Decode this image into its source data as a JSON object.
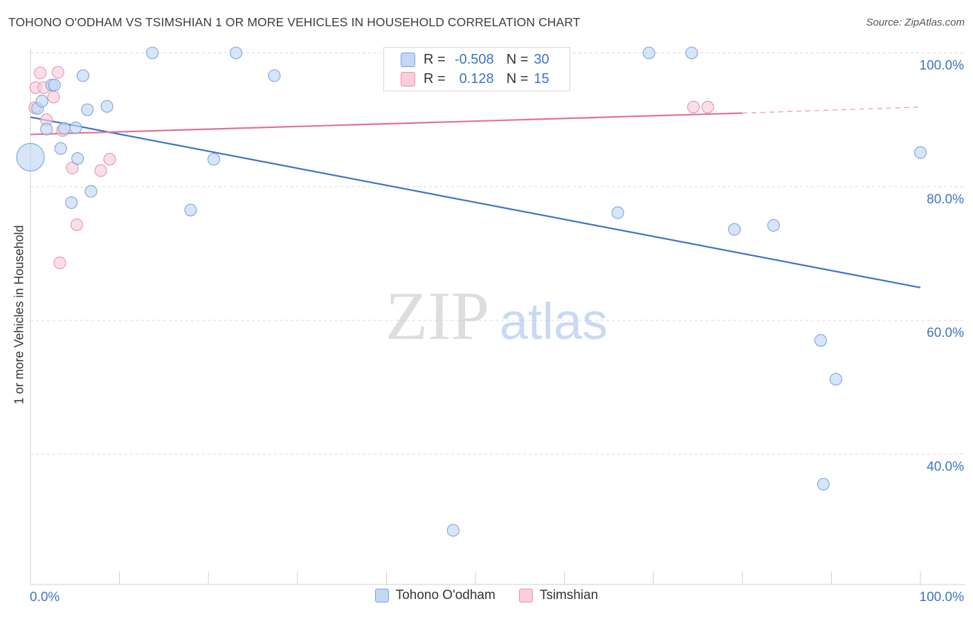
{
  "title": "TOHONO O'ODHAM VS TSIMSHIAN 1 OR MORE VEHICLES IN HOUSEHOLD CORRELATION CHART",
  "source": "Source: ZipAtlas.com",
  "watermark": {
    "zip": "ZIP",
    "atlas": "atlas"
  },
  "stats": {
    "blue": {
      "r_label": "R =",
      "r_value": "-0.508",
      "n_label": "N =",
      "n_value": "30"
    },
    "pink": {
      "r_label": "R =",
      "r_value": "0.128",
      "n_label": "N =",
      "n_value": "15"
    }
  },
  "colors": {
    "blue": "#3b73c9",
    "pink": "#e0709a",
    "blue_fill": "#c2d7f4",
    "pink_fill": "#f9cddb",
    "grid": "#d9d9d9"
  },
  "chart_data": {
    "type": "scatter",
    "title": "TOHONO O'ODHAM VS TSIMSHIAN 1 OR MORE VEHICLES IN HOUSEHOLD CORRELATION CHART",
    "xlabel": "",
    "ylabel": "1 or more Vehicles in Household",
    "xlim": [
      0,
      100
    ],
    "ylim": [
      20.5,
      101.5
    ],
    "x_tick_labels": [
      "0.0%",
      "100.0%"
    ],
    "y_ticks": [
      {
        "value": 100,
        "label": "100.0%"
      },
      {
        "value": 80,
        "label": "80.0%"
      },
      {
        "value": 60,
        "label": "60.0%"
      },
      {
        "value": 40,
        "label": "40.0%"
      }
    ],
    "series": [
      {
        "name": "Tohono O'odham",
        "color": "#3b73c9",
        "points": [
          {
            "x": 0.0,
            "y": 84.4,
            "big": true
          },
          {
            "x": 0.8,
            "y": 91.7
          },
          {
            "x": 1.3,
            "y": 92.8
          },
          {
            "x": 1.8,
            "y": 88.6
          },
          {
            "x": 2.4,
            "y": 95.2
          },
          {
            "x": 2.7,
            "y": 95.2
          },
          {
            "x": 3.4,
            "y": 85.7
          },
          {
            "x": 3.8,
            "y": 88.7
          },
          {
            "x": 4.6,
            "y": 77.6
          },
          {
            "x": 5.1,
            "y": 88.8
          },
          {
            "x": 5.3,
            "y": 84.2
          },
          {
            "x": 5.9,
            "y": 96.6
          },
          {
            "x": 6.4,
            "y": 91.5
          },
          {
            "x": 6.8,
            "y": 79.3
          },
          {
            "x": 8.6,
            "y": 92.0
          },
          {
            "x": 13.7,
            "y": 100.0
          },
          {
            "x": 18.0,
            "y": 76.5
          },
          {
            "x": 20.6,
            "y": 84.1
          },
          {
            "x": 23.1,
            "y": 100.0
          },
          {
            "x": 27.4,
            "y": 96.6
          },
          {
            "x": 47.5,
            "y": 28.6
          },
          {
            "x": 66.0,
            "y": 76.1
          },
          {
            "x": 69.5,
            "y": 100.0
          },
          {
            "x": 74.3,
            "y": 100.0
          },
          {
            "x": 79.1,
            "y": 73.6
          },
          {
            "x": 83.5,
            "y": 74.2
          },
          {
            "x": 88.8,
            "y": 57.0
          },
          {
            "x": 89.1,
            "y": 35.5
          },
          {
            "x": 90.5,
            "y": 51.2
          },
          {
            "x": 100.0,
            "y": 85.1
          }
        ],
        "trend": {
          "x": [
            0,
            100
          ],
          "y": [
            90.4,
            64.9
          ]
        }
      },
      {
        "name": "Tsimshian",
        "color": "#e0709a",
        "points": [
          {
            "x": 0.5,
            "y": 91.8
          },
          {
            "x": 0.6,
            "y": 94.8
          },
          {
            "x": 1.1,
            "y": 97.0
          },
          {
            "x": 1.5,
            "y": 94.8
          },
          {
            "x": 1.8,
            "y": 90.0
          },
          {
            "x": 2.6,
            "y": 93.4
          },
          {
            "x": 3.1,
            "y": 97.1
          },
          {
            "x": 3.3,
            "y": 68.6
          },
          {
            "x": 3.6,
            "y": 88.4
          },
          {
            "x": 4.7,
            "y": 82.8
          },
          {
            "x": 5.2,
            "y": 74.3
          },
          {
            "x": 7.9,
            "y": 82.4
          },
          {
            "x": 8.9,
            "y": 84.1
          },
          {
            "x": 74.5,
            "y": 91.9
          },
          {
            "x": 76.1,
            "y": 91.9
          }
        ],
        "trend": {
          "x": [
            0,
            80
          ],
          "y": [
            87.8,
            91.0
          ]
        },
        "trend_dashed": {
          "x": [
            80,
            100
          ],
          "y": [
            91.0,
            91.9
          ]
        }
      }
    ],
    "legend": [
      "Tohono O'odham",
      "Tsimshian"
    ],
    "legend_position": "bottom"
  }
}
